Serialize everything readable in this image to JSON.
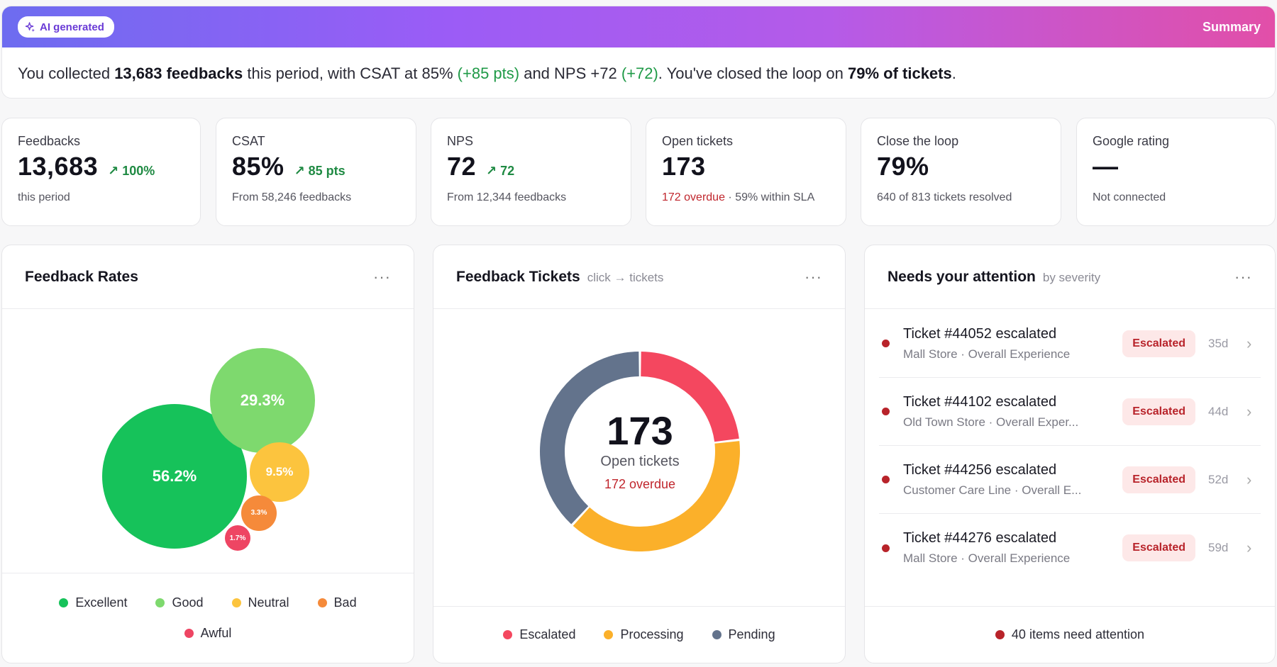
{
  "summary": {
    "badge": "AI generated",
    "label": "Summary",
    "text_1": "You collected ",
    "feedback_count": "13,683 feedbacks",
    "text_2": " this period, with CSAT at 85% ",
    "csat_delta": "(+85 pts)",
    "text_3": " and NPS +72 ",
    "nps_delta": "(+72)",
    "text_4": ". You've closed the loop on ",
    "loop_value": "79% of tickets",
    "text_5": "."
  },
  "kpis": [
    {
      "label": "Feedbacks",
      "value": "13,683",
      "delta": "↗ 100%",
      "sub": "this period"
    },
    {
      "label": "CSAT",
      "value": "85%",
      "delta": "↗ 85 pts",
      "sub": "From 58,246 feedbacks"
    },
    {
      "label": "NPS",
      "value": "72",
      "delta": "↗ 72",
      "sub": "From 12,344 feedbacks"
    },
    {
      "label": "Open tickets",
      "value": "173",
      "sub_overdue": "172 overdue",
      "sub_rest": " · 59% within SLA"
    },
    {
      "label": "Close the loop",
      "value": "79%",
      "sub": "640 of 813 tickets resolved"
    },
    {
      "label": "Google rating",
      "value": "—",
      "sub": "Not connected"
    }
  ],
  "panels": {
    "rates": {
      "title": "Feedback Rates",
      "menu": "···"
    },
    "tickets": {
      "title": "Feedback Tickets",
      "hint": "click → tickets",
      "menu": "···"
    },
    "attention": {
      "title": "Needs your attention",
      "hint": "by severity",
      "menu": "···"
    }
  },
  "chart_data": [
    {
      "type": "bubble",
      "title": "Feedback Rates",
      "categories": [
        "Excellent",
        "Good",
        "Neutral",
        "Bad",
        "Awful"
      ],
      "values": [
        56.2,
        29.3,
        9.5,
        3.3,
        1.7
      ],
      "labels": [
        "56.2%",
        "29.3%",
        "9.5%",
        "3.3%",
        "1.7%"
      ],
      "colors": [
        "#16c25a",
        "#7ed96e",
        "#fcc43e",
        "#f58a3a",
        "#ee4563"
      ],
      "legend": "bottom"
    },
    {
      "type": "pie",
      "title": "Feedback Tickets",
      "categories": [
        "Escalated",
        "Processing",
        "Pending"
      ],
      "values": [
        40,
        67,
        66
      ],
      "colors": [
        "#f4475f",
        "#fbb02a",
        "#63738c"
      ],
      "center_value": "173",
      "center_label": "Open tickets",
      "center_sub": "172 overdue",
      "legend": "bottom"
    }
  ],
  "attention": {
    "items": [
      {
        "title": "Ticket #44052 escalated",
        "sub": "Mall Store · Overall Experience",
        "badge": "Escalated",
        "age": "35d"
      },
      {
        "title": "Ticket #44102 escalated",
        "sub": "Old Town Store · Overall Exper...",
        "badge": "Escalated",
        "age": "44d"
      },
      {
        "title": "Ticket #44256 escalated",
        "sub": "Customer Care Line · Overall E...",
        "badge": "Escalated",
        "age": "52d"
      },
      {
        "title": "Ticket #44276 escalated",
        "sub": "Mall Store · Overall Experience",
        "badge": "Escalated",
        "age": "59d"
      }
    ],
    "footer": "40 items need attention"
  },
  "colors": {
    "positive": "#1f8a43",
    "danger": "#b8232a",
    "gradient_start": "#6d6cf0",
    "gradient_end": "#e24fa8"
  }
}
